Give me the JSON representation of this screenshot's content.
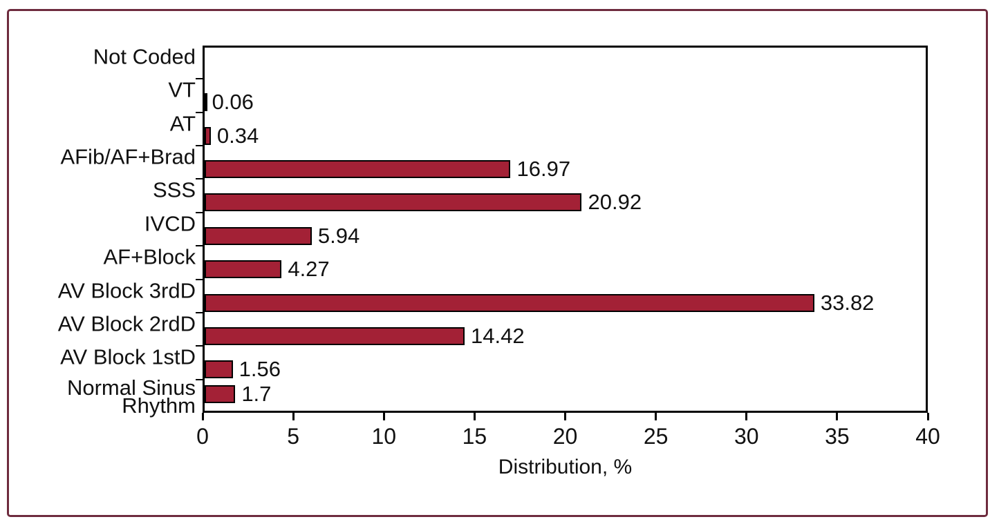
{
  "figure": {
    "background_color": "#FFFFFF",
    "border_color": "#6E2B3E"
  },
  "chart_data": {
    "type": "bar",
    "orientation": "horizontal",
    "title": "",
    "xlabel": "Distribution, %",
    "ylabel": "",
    "xlim": [
      0,
      40
    ],
    "x_ticks": [
      "0",
      "5",
      "10",
      "15",
      "20",
      "25",
      "30",
      "35",
      "40"
    ],
    "grid": false,
    "legend": false,
    "bar_color": "#A32136",
    "bar_border_color": "#000000",
    "categories": [
      "Not Coded",
      "VT",
      "AT",
      "AFib/AF+Brad",
      "SSS",
      "IVCD",
      "AF+Block",
      "AV Block 3rdD",
      "AV Block 2rdD",
      "AV Block 1stD",
      "Normal Sinus Rhythm"
    ],
    "values": [
      null,
      0.06,
      0.34,
      16.97,
      20.92,
      5.94,
      4.27,
      33.82,
      14.42,
      1.56,
      1.7
    ],
    "value_labels": [
      "",
      "0.06",
      "0.34",
      "16.97",
      "20.92",
      "5.94",
      "4.27",
      "33.82",
      "14.42",
      "1.56",
      "1.7"
    ]
  }
}
